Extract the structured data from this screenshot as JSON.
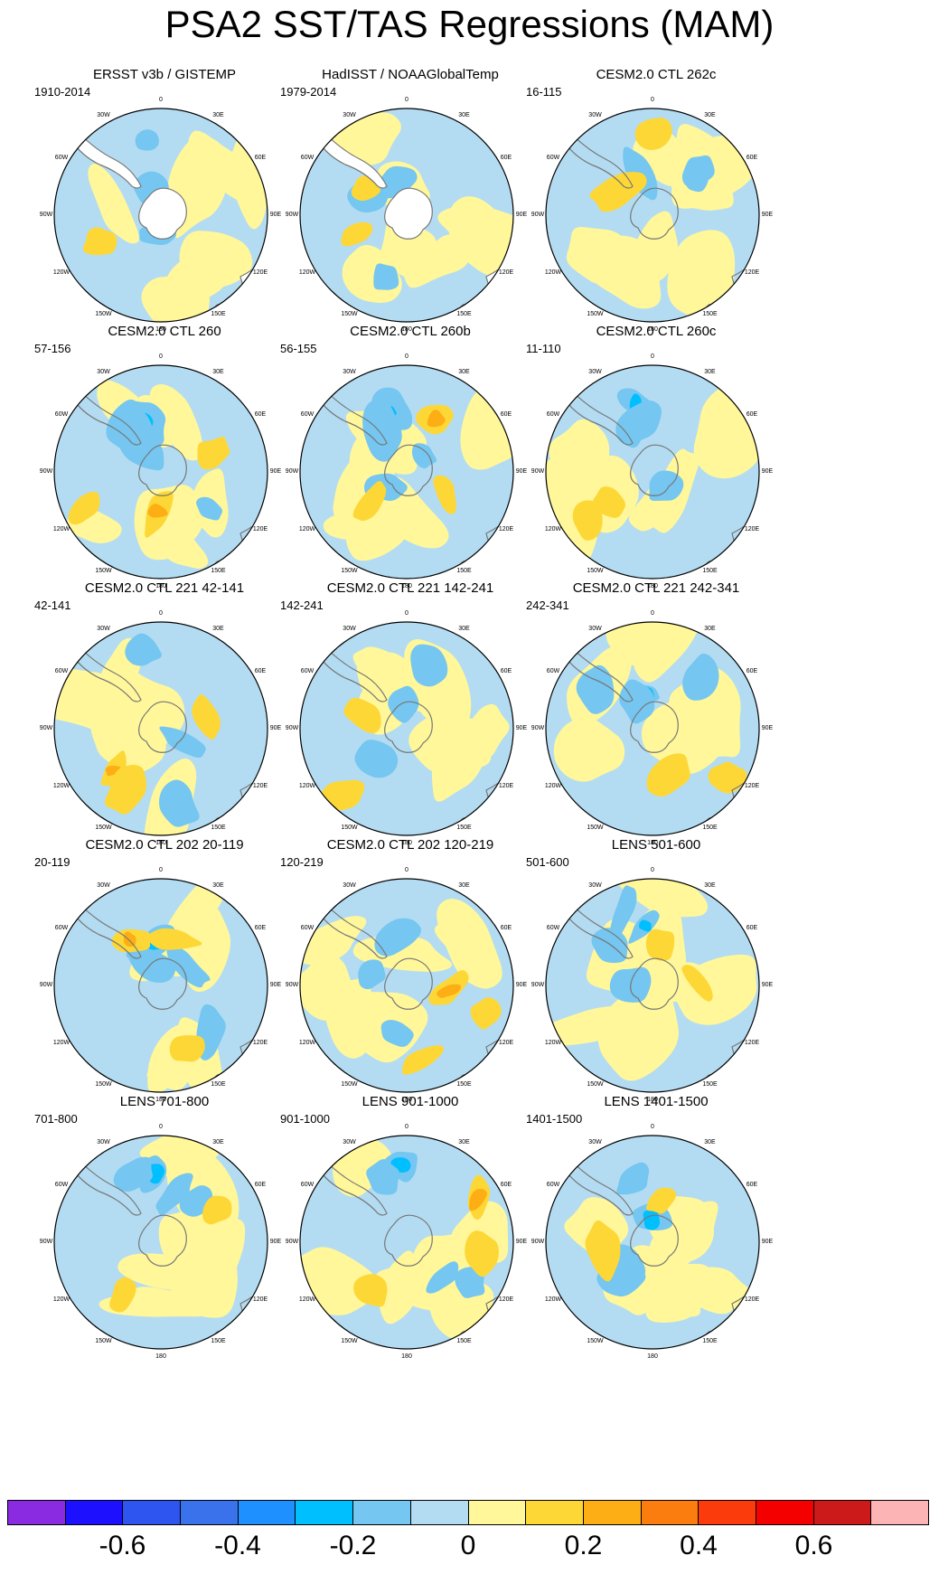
{
  "title": "PSA2 SST/TAS Regressions (MAM)",
  "longitude_labels": [
    "0",
    "30E",
    "60E",
    "90E",
    "120E",
    "150E",
    "180",
    "150W",
    "120W",
    "90W",
    "60W",
    "30W"
  ],
  "panels": [
    {
      "title": "ERSST v3b / GISTEMP",
      "years": "1910-2014",
      "warm": 1,
      "cold": 1,
      "land_mask": true
    },
    {
      "title": "HadISST / NOAAGlobalTemp",
      "years": "1979-2014",
      "warm": 2,
      "cold": 1,
      "land_mask": true
    },
    {
      "title": "CESM2.0 CTL 262c",
      "years": "16-115",
      "warm": 2,
      "cold": 1,
      "land_mask": false
    },
    {
      "title": "CESM2.0 CTL 260",
      "years": "57-156",
      "warm": 3,
      "cold": 2,
      "land_mask": false
    },
    {
      "title": "CESM2.0 CTL 260b",
      "years": "56-155",
      "warm": 3,
      "cold": 2,
      "land_mask": false
    },
    {
      "title": "CESM2.0 CTL 260c",
      "years": "11-110",
      "warm": 2,
      "cold": 2,
      "land_mask": false
    },
    {
      "title": "CESM2.0 CTL 221 42-141",
      "years": "42-141",
      "warm": 3,
      "cold": 1,
      "land_mask": false
    },
    {
      "title": "CESM2.0 CTL 221 142-241",
      "years": "142-241",
      "warm": 2,
      "cold": 1,
      "land_mask": false
    },
    {
      "title": "CESM2.0 CTL 221 242-341",
      "years": "242-341",
      "warm": 2,
      "cold": 2,
      "land_mask": false
    },
    {
      "title": "CESM2.0 CTL 202 20-119",
      "years": "20-119",
      "warm": 3,
      "cold": 2,
      "land_mask": false
    },
    {
      "title": "CESM2.0 CTL 202 120-219",
      "years": "120-219",
      "warm": 3,
      "cold": 1,
      "land_mask": false
    },
    {
      "title": "LENS 501-600",
      "years": "501-600",
      "warm": 2,
      "cold": 2,
      "land_mask": false
    },
    {
      "title": "LENS 701-800",
      "years": "701-800",
      "warm": 2,
      "cold": 2,
      "land_mask": false
    },
    {
      "title": "LENS 901-1000",
      "years": "901-1000",
      "warm": 3,
      "cold": 2,
      "land_mask": false
    },
    {
      "title": "LENS 1401-1500",
      "years": "1401-1500",
      "warm": 2,
      "cold": 2,
      "land_mask": false
    }
  ],
  "colorbar": {
    "colors": [
      "#8a2be2",
      "#1c10ff",
      "#2f55f0",
      "#3a72eb",
      "#1e90ff",
      "#00bfff",
      "#75c6f0",
      "#b3dcf2",
      "#fff79a",
      "#fdd736",
      "#fcae14",
      "#fb7d10",
      "#fc3b0c",
      "#f50000",
      "#cc1a1a",
      "#fcb4b4"
    ],
    "labels": [
      "-0.6",
      "-0.4",
      "-0.2",
      "0",
      "0.2",
      "0.4",
      "0.6"
    ]
  },
  "chart_data": {
    "type": "heatmap",
    "title": "PSA2 SST/TAS Regressions (MAM)",
    "projection": "south polar stereographic",
    "color_scale_levels": [
      -0.7,
      -0.6,
      -0.5,
      -0.4,
      -0.3,
      -0.2,
      -0.1,
      0,
      0.1,
      0.2,
      0.3,
      0.4,
      0.5,
      0.6,
      0.7
    ],
    "color_scale_ticks": [
      -0.6,
      -0.4,
      -0.2,
      0,
      0.2,
      0.4,
      0.6
    ]
  }
}
